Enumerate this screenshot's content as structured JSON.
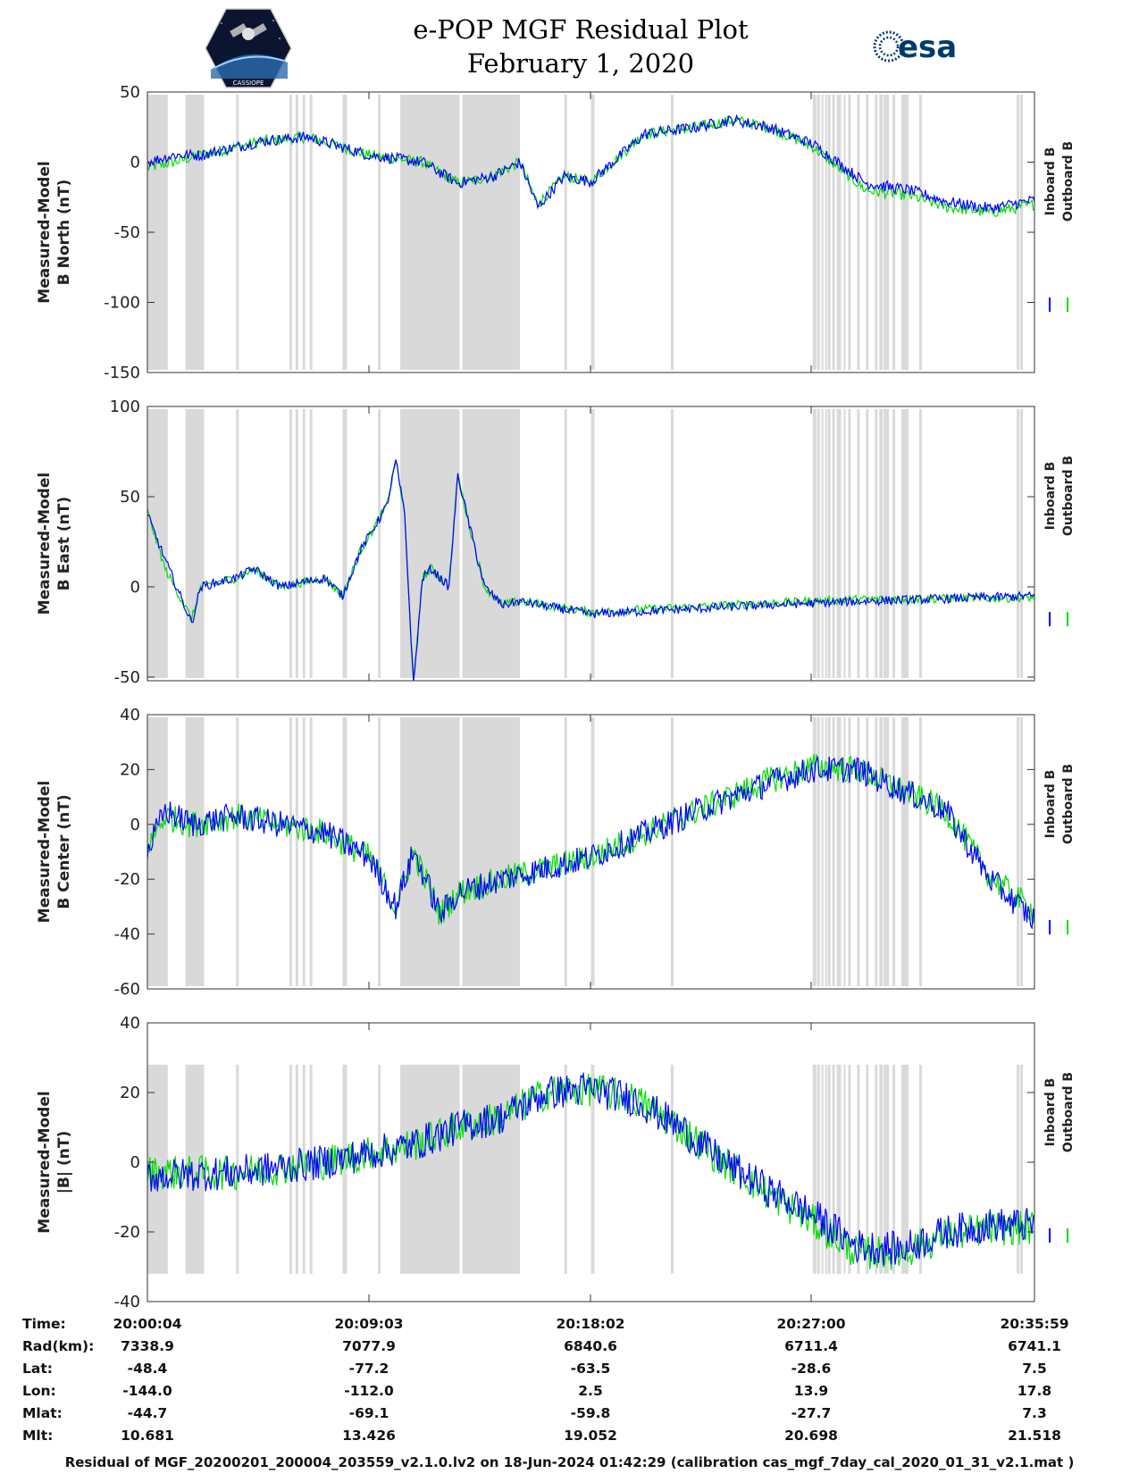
{
  "header": {
    "title_line1": "e-POP MGF Residual Plot",
    "title_line2": "February 1, 2020"
  },
  "logos": {
    "left": {
      "icon": "cassiope-mission-logo",
      "text": "CASSIOPE"
    },
    "right": {
      "icon": "esa-logo",
      "text": "esa"
    }
  },
  "colors": {
    "inboard": "#0000ff",
    "outboard": "#00dd00",
    "shading": "#d9d9d9"
  },
  "chart_data": [
    {
      "type": "line",
      "ylabel": [
        "Measured-Model",
        "B North (nT)"
      ],
      "ylim": [
        -150,
        50
      ],
      "yticks": [
        50,
        0,
        -50,
        -100,
        -150
      ],
      "legend": [
        "Inboard B",
        "Outboard B"
      ],
      "series": [
        {
          "name": "Inboard B",
          "x": [
            0,
            0.03,
            0.06,
            0.13,
            0.18,
            0.25,
            0.31,
            0.35,
            0.39,
            0.42,
            0.44,
            0.47,
            0.5,
            0.56,
            0.62,
            0.66,
            0.7,
            0.75,
            0.81,
            0.86,
            0.9,
            0.95,
            1.0
          ],
          "values": [
            0,
            5,
            5,
            15,
            18,
            5,
            0,
            -15,
            -10,
            0,
            -32,
            -10,
            -14,
            20,
            25,
            30,
            25,
            13,
            -15,
            -20,
            -28,
            -33,
            -27
          ]
        },
        {
          "name": "Outboard B",
          "x": [
            0,
            0.03,
            0.06,
            0.13,
            0.18,
            0.25,
            0.31,
            0.35,
            0.39,
            0.42,
            0.44,
            0.47,
            0.5,
            0.56,
            0.62,
            0.66,
            0.7,
            0.75,
            0.81,
            0.86,
            0.9,
            0.95,
            1.0
          ],
          "values": [
            -4,
            0,
            5,
            15,
            18,
            5,
            0,
            -15,
            -10,
            0,
            -30,
            -10,
            -14,
            20,
            25,
            30,
            25,
            11,
            -20,
            -24,
            -32,
            -36,
            -30
          ]
        }
      ]
    },
    {
      "type": "line",
      "ylabel": [
        "Measured-Model",
        "B East (nT)"
      ],
      "ylim": [
        -52,
        100
      ],
      "yticks": [
        100,
        50,
        0,
        -50
      ],
      "legend": [
        "Inboard B",
        "Outboard B"
      ],
      "series": [
        {
          "name": "Inboard B",
          "x": [
            0,
            0.02,
            0.05,
            0.06,
            0.1,
            0.12,
            0.15,
            0.2,
            0.22,
            0.24,
            0.27,
            0.28,
            0.29,
            0.3,
            0.31,
            0.32,
            0.34,
            0.35,
            0.36,
            0.38,
            0.4,
            0.42,
            0.5,
            0.7,
            0.8,
            1.0
          ],
          "values": [
            40,
            15,
            -20,
            0,
            5,
            10,
            0,
            5,
            -5,
            20,
            45,
            70,
            40,
            -55,
            5,
            10,
            0,
            62,
            40,
            0,
            -10,
            -8,
            -15,
            -10,
            -8,
            -5
          ]
        },
        {
          "name": "Outboard B",
          "x": [
            0,
            0.02,
            0.05,
            0.06,
            0.1,
            0.12,
            0.15,
            0.2,
            0.22,
            0.24,
            0.27,
            0.28,
            0.29,
            0.3,
            0.31,
            0.32,
            0.34,
            0.35,
            0.36,
            0.38,
            0.4,
            0.42,
            0.5,
            0.7,
            0.8,
            1.0
          ],
          "values": [
            42,
            10,
            -18,
            0,
            5,
            10,
            0,
            5,
            -5,
            20,
            45,
            70,
            40,
            -55,
            5,
            10,
            0,
            62,
            40,
            0,
            -10,
            -8,
            -14,
            -9,
            -7,
            -6
          ]
        }
      ]
    },
    {
      "type": "line",
      "ylabel": [
        "Measured-Model",
        "B Center (nT)"
      ],
      "ylim": [
        -60,
        40
      ],
      "yticks": [
        40,
        20,
        0,
        -20,
        -40,
        -60
      ],
      "legend": [
        "Inboard B",
        "Outboard B"
      ],
      "series": [
        {
          "name": "Inboard B",
          "x": [
            0,
            0.02,
            0.05,
            0.1,
            0.15,
            0.2,
            0.25,
            0.28,
            0.3,
            0.32,
            0.33,
            0.35,
            0.4,
            0.5,
            0.62,
            0.7,
            0.75,
            0.8,
            0.9,
            0.95,
            1.0
          ],
          "values": [
            -10,
            5,
            0,
            3,
            0,
            -3,
            -12,
            -30,
            -10,
            -25,
            -33,
            -25,
            -20,
            -12,
            5,
            15,
            20,
            20,
            5,
            -20,
            -35
          ]
        },
        {
          "name": "Outboard B",
          "x": [
            0,
            0.02,
            0.05,
            0.1,
            0.15,
            0.2,
            0.25,
            0.28,
            0.3,
            0.32,
            0.33,
            0.35,
            0.4,
            0.5,
            0.62,
            0.7,
            0.75,
            0.8,
            0.9,
            0.95,
            1.0
          ],
          "values": [
            -8,
            3,
            0,
            3,
            0,
            -3,
            -12,
            -30,
            -10,
            -25,
            -33,
            -25,
            -20,
            -12,
            5,
            16,
            21,
            20,
            5,
            -19,
            -32
          ]
        }
      ]
    },
    {
      "type": "line",
      "ylabel": [
        "Measured-Model",
        "|B| (nT)"
      ],
      "ylim": [
        -40,
        40
      ],
      "yticks": [
        40,
        20,
        0,
        -20,
        -40
      ],
      "legend": [
        "Inboard B",
        "Outboard B"
      ],
      "series": [
        {
          "name": "Inboard B",
          "x": [
            0,
            0.1,
            0.2,
            0.3,
            0.35,
            0.4,
            0.45,
            0.5,
            0.55,
            0.6,
            0.65,
            0.7,
            0.75,
            0.8,
            0.85,
            0.9,
            0.95,
            1.0
          ],
          "values": [
            -4,
            -3,
            0,
            5,
            10,
            13,
            20,
            21,
            18,
            10,
            0,
            -8,
            -15,
            -24,
            -25,
            -20,
            -18,
            -18
          ]
        },
        {
          "name": "Outboard B",
          "x": [
            0,
            0.1,
            0.2,
            0.3,
            0.35,
            0.4,
            0.45,
            0.5,
            0.55,
            0.6,
            0.65,
            0.7,
            0.75,
            0.8,
            0.85,
            0.9,
            0.95,
            1.0
          ],
          "values": [
            -3,
            -3,
            0,
            5,
            10,
            13,
            20,
            21,
            18,
            10,
            0,
            -9,
            -17,
            -26,
            -26,
            -21,
            -19,
            -19
          ]
        }
      ]
    }
  ],
  "time_axis": {
    "labels": [
      "20:00:04",
      "20:09:03",
      "20:18:02",
      "20:27:00",
      "20:35:59"
    ]
  },
  "info_table": {
    "rows": [
      {
        "label": "Time:",
        "values": [
          "20:00:04",
          "20:09:03",
          "20:18:02",
          "20:27:00",
          "20:35:59"
        ]
      },
      {
        "label": "Rad(km):",
        "values": [
          "7338.9",
          "7077.9",
          "6840.6",
          "6711.4",
          "6741.1"
        ]
      },
      {
        "label": "Lat:",
        "values": [
          "-48.4",
          "-77.2",
          "-63.5",
          "-28.6",
          "7.5"
        ]
      },
      {
        "label": "Lon:",
        "values": [
          "-144.0",
          "-112.0",
          "2.5",
          "13.9",
          "17.8"
        ]
      },
      {
        "label": "Mlat:",
        "values": [
          "-44.7",
          "-69.1",
          "-59.8",
          "-27.7",
          "7.3"
        ]
      },
      {
        "label": "Mlt:",
        "values": [
          "10.681",
          "13.426",
          "19.052",
          "20.698",
          "21.518"
        ]
      }
    ]
  },
  "shading": {
    "time_fraction_bands": [
      [
        0.0,
        0.023
      ],
      [
        0.043,
        0.064
      ],
      [
        0.1,
        0.103
      ],
      [
        0.16,
        0.163
      ],
      [
        0.167,
        0.17
      ],
      [
        0.175,
        0.178
      ],
      [
        0.183,
        0.186
      ],
      [
        0.22,
        0.225
      ],
      [
        0.26,
        0.263
      ],
      [
        0.285,
        0.352
      ],
      [
        0.355,
        0.42
      ],
      [
        0.47,
        0.473
      ],
      [
        0.5,
        0.504
      ],
      [
        0.59,
        0.593
      ],
      [
        0.75,
        0.754
      ],
      [
        0.755,
        0.758
      ],
      [
        0.76,
        0.762
      ],
      [
        0.764,
        0.766
      ],
      [
        0.767,
        0.77
      ],
      [
        0.772,
        0.775
      ],
      [
        0.777,
        0.778
      ],
      [
        0.779,
        0.782
      ],
      [
        0.785,
        0.787
      ],
      [
        0.79,
        0.793
      ],
      [
        0.8,
        0.803
      ],
      [
        0.81,
        0.813
      ],
      [
        0.82,
        0.823
      ],
      [
        0.825,
        0.829
      ],
      [
        0.83,
        0.836
      ],
      [
        0.84,
        0.843
      ],
      [
        0.85,
        0.858
      ],
      [
        0.87,
        0.873
      ],
      [
        0.98,
        0.983
      ],
      [
        0.984,
        0.987
      ]
    ]
  },
  "footer": {
    "text": "Residual of MGF_20200201_200004_203559_v2.1.0.lv2 on 18-Jun-2024 01:42:29 (calibration cas_mgf_7day_cal_2020_01_31_v2.1.mat )"
  }
}
